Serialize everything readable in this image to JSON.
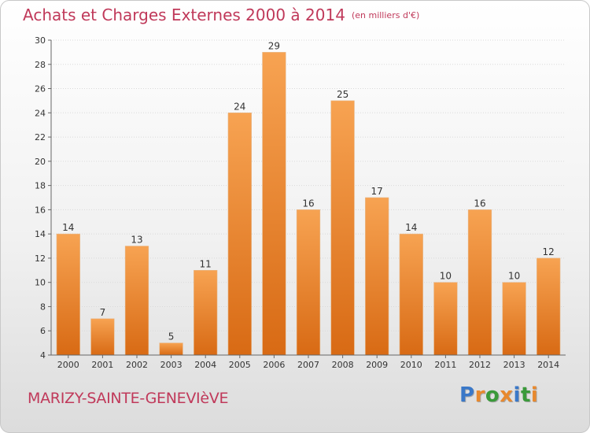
{
  "page": {
    "title": "Achats et Charges Externes 2000 à 2014",
    "unit_note": "(en milliers d'€)",
    "town": "MARIZY-SAINTE-GENEVIèVE",
    "logo": {
      "text": "Proxiti",
      "letters": [
        {
          "ch": "P",
          "color": "#3a78c8"
        },
        {
          "ch": "r",
          "color": "#e8892e"
        },
        {
          "ch": "o",
          "color": "#3a9a3a"
        },
        {
          "ch": "x",
          "color": "#e8892e"
        },
        {
          "ch": "i",
          "color": "#3a78c8"
        },
        {
          "ch": "t",
          "color": "#3a9a3a"
        },
        {
          "ch": "i",
          "color": "#e8892e"
        }
      ]
    }
  },
  "chart_data": {
    "type": "bar",
    "title": "Achats et Charges Externes 2000 à 2014",
    "subtitle": "(en milliers d'€)",
    "categories": [
      "2000",
      "2001",
      "2002",
      "2003",
      "2004",
      "2005",
      "2006",
      "2007",
      "2008",
      "2009",
      "2010",
      "2011",
      "2012",
      "2013",
      "2014"
    ],
    "values": [
      14,
      7,
      13,
      5,
      11,
      24,
      29,
      16,
      25,
      17,
      14,
      10,
      16,
      10,
      12
    ],
    "ylim": [
      4,
      30
    ],
    "yticks": [
      4,
      6,
      8,
      10,
      12,
      14,
      16,
      18,
      20,
      22,
      24,
      26,
      28,
      30
    ],
    "grid": true,
    "bar_color_top": "#f7a352",
    "bar_color_bottom": "#d86a14",
    "title_color": "#c0395a"
  }
}
